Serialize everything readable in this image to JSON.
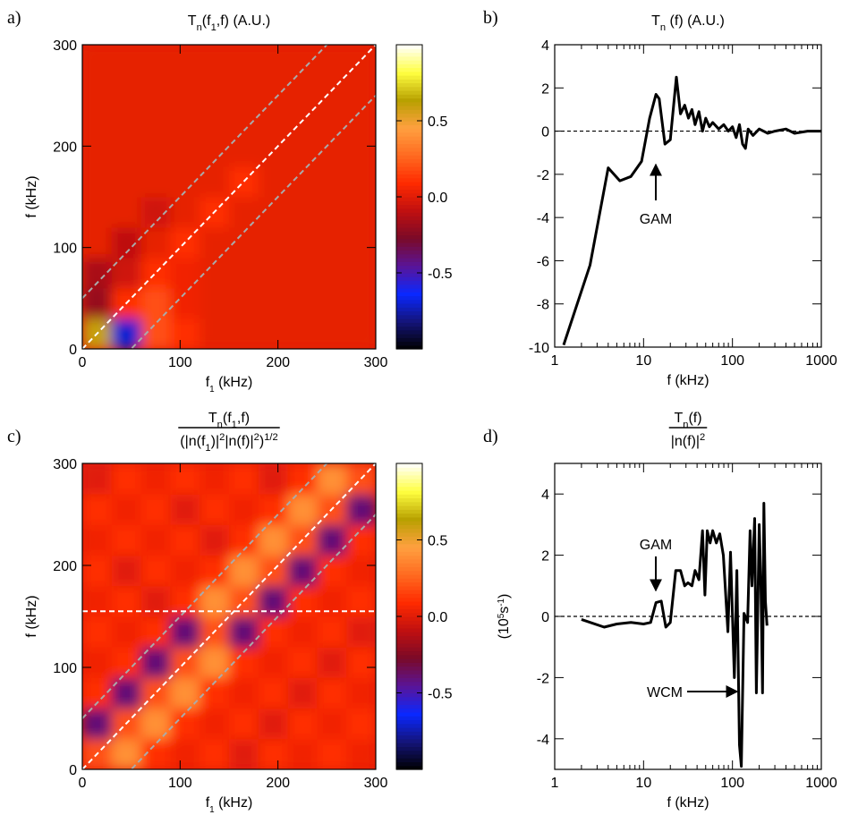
{
  "chart_data": [
    {
      "type": "heatmap",
      "panel_label": "a)",
      "title": [
        {
          "text": "T"
        },
        {
          "text": "n",
          "shift": "sub"
        },
        {
          "text": "(f"
        },
        {
          "text": "1",
          "shift": "sub"
        },
        {
          "text": ",f) (A.U.)"
        }
      ],
      "xlabel": [
        {
          "text": "f"
        },
        {
          "text": "1",
          "shift": "sub"
        },
        {
          "text": " (kHz)"
        }
      ],
      "ylabel": [
        {
          "text": "f (kHz)"
        }
      ],
      "xlim": [
        0,
        300
      ],
      "ylim": [
        0,
        300
      ],
      "xticks": [
        0,
        100,
        200,
        300
      ],
      "yticks": [
        0,
        100,
        200,
        300
      ],
      "zlim": [
        -1,
        1
      ],
      "zticks": [
        -0.5,
        {
          "value": 0,
          "label": "0.0"
        },
        0.5
      ],
      "colorscale": [
        "#000000",
        "#14147a",
        "#0a28ff",
        "#5a1498",
        "#7a0a28",
        "#c01010",
        "#ff2a00",
        "#ff6a20",
        "#ffa040",
        "#b8a000",
        "#ffff40",
        "#ffffff"
      ],
      "diagonals": [
        {
          "offset": 50,
          "color": "#aaaaaa"
        },
        {
          "offset": 0,
          "color": "#ffffff"
        },
        {
          "offset": -50,
          "color": "#aaaaaa"
        }
      ],
      "z": [
        [
          0.6,
          -0.7,
          0.2,
          0.1,
          0.02,
          0.02,
          0.02,
          0.02,
          0.02,
          0.02
        ],
        [
          -0.2,
          0.1,
          0.2,
          0.05,
          0.02,
          0.02,
          0.02,
          0.02,
          0.02,
          0.02
        ],
        [
          -0.15,
          -0.05,
          0.1,
          0.05,
          0.02,
          0.02,
          0.02,
          0.02,
          0.02,
          0.02
        ],
        [
          0.02,
          -0.1,
          0.02,
          0.1,
          0.02,
          0.02,
          0.02,
          0.02,
          0.02,
          0.02
        ],
        [
          0.02,
          0.02,
          -0.05,
          0.02,
          0.1,
          0.02,
          0.02,
          0.02,
          0.02,
          0.02
        ],
        [
          0.02,
          0.02,
          0.02,
          0.02,
          0.02,
          0.1,
          0.02,
          0.02,
          0.02,
          0.02
        ],
        [
          0.02,
          0.02,
          0.02,
          0.02,
          0.02,
          0.02,
          0.02,
          0.02,
          0.02,
          0.02
        ],
        [
          0.02,
          0.02,
          0.02,
          0.02,
          0.02,
          0.02,
          0.02,
          0.02,
          0.02,
          0.02
        ],
        [
          0.02,
          0.02,
          0.02,
          0.02,
          0.02,
          0.02,
          0.02,
          0.02,
          0.02,
          0.02
        ],
        [
          0.02,
          0.02,
          0.02,
          0.02,
          0.02,
          0.02,
          0.02,
          0.02,
          0.02,
          0.02
        ]
      ]
    },
    {
      "type": "line",
      "panel_label": "b)",
      "title": [
        {
          "text": "T"
        },
        {
          "text": "n",
          "shift": "sub"
        },
        {
          "text": " (f) (A.U.)"
        }
      ],
      "xlabel": [
        {
          "text": "f (kHz)"
        }
      ],
      "xlog": true,
      "xlim": [
        1,
        1000
      ],
      "xticks": [
        1,
        10,
        100,
        1000
      ],
      "ylim": [
        -10,
        4
      ],
      "yticks": [
        -10,
        -8,
        -6,
        -4,
        -2,
        0,
        2,
        4
      ],
      "zero_line": true,
      "color": "#000000",
      "x": [
        1.26,
        2.5,
        4,
        5.4,
        7.2,
        9.5,
        11.7,
        13.8,
        15,
        17.4,
        20,
        23.4,
        26,
        29,
        32,
        35,
        38,
        42,
        46,
        50,
        55,
        60,
        70,
        80,
        90,
        100,
        110,
        120,
        130,
        140,
        150,
        170,
        200,
        250,
        300,
        400,
        500,
        700,
        1000
      ],
      "values": [
        -9.9,
        -6.2,
        -1.7,
        -2.3,
        -2.1,
        -1.4,
        0.6,
        1.7,
        1.5,
        -0.6,
        -0.4,
        2.5,
        0.8,
        1.2,
        0.6,
        1.0,
        0.3,
        0.9,
        0.0,
        0.6,
        0.2,
        0.4,
        0.1,
        0.3,
        0.0,
        0.2,
        -0.3,
        0.3,
        -0.6,
        -0.8,
        0.1,
        -0.2,
        0.1,
        -0.1,
        0.0,
        0.1,
        -0.1,
        0.0,
        0.0
      ],
      "annotations": [
        "GAM"
      ]
    },
    {
      "type": "heatmap",
      "panel_label": "c)",
      "title_numerator": [
        {
          "text": "T"
        },
        {
          "text": "n",
          "shift": "sub"
        },
        {
          "text": "(f"
        },
        {
          "text": "1",
          "shift": "sub"
        },
        {
          "text": ",f)"
        }
      ],
      "title_denominator": [
        {
          "text": "(|n(f"
        },
        {
          "text": "1",
          "shift": "sub"
        },
        {
          "text": ")|"
        },
        {
          "text": "2",
          "shift": "sup"
        },
        {
          "text": "|n(f)|"
        },
        {
          "text": "2",
          "shift": "sup"
        },
        {
          "text": ")"
        },
        {
          "text": "1/2",
          "shift": "sup"
        }
      ],
      "xlabel": [
        {
          "text": "f"
        },
        {
          "text": "1",
          "shift": "sub"
        },
        {
          "text": " (kHz)"
        }
      ],
      "ylabel": [
        {
          "text": "f (kHz)"
        }
      ],
      "xlim": [
        0,
        300
      ],
      "ylim": [
        0,
        300
      ],
      "xticks": [
        0,
        100,
        200,
        300
      ],
      "yticks": [
        0,
        100,
        200,
        300
      ],
      "zlim": [
        -1,
        1
      ],
      "zticks": [
        -0.5,
        {
          "value": 0,
          "label": "0.0"
        },
        0.5
      ],
      "colorscale": [
        "#000000",
        "#14147a",
        "#0a28ff",
        "#5a1498",
        "#7a0a28",
        "#c01010",
        "#ff2a00",
        "#ff6a20",
        "#ffa040",
        "#b8a000",
        "#ffff40",
        "#ffffff"
      ],
      "diagonals": [
        {
          "offset": 50,
          "color": "#aaaaaa"
        },
        {
          "offset": 0,
          "color": "#ffffff"
        },
        {
          "offset": -50,
          "color": "#aaaaaa"
        }
      ],
      "hline": 155,
      "z": [
        [
          0.2,
          0.4,
          0.1,
          0.05,
          0.1,
          0.0,
          0.1,
          0.05,
          0.1,
          0.05
        ],
        [
          -0.4,
          0.2,
          0.4,
          0.1,
          0.05,
          0.1,
          0.0,
          0.1,
          0.05,
          0.1
        ],
        [
          0.1,
          -0.4,
          0.2,
          0.4,
          0.1,
          0.05,
          0.1,
          0.0,
          0.1,
          0.05
        ],
        [
          0.05,
          0.1,
          -0.4,
          0.2,
          0.4,
          0.1,
          0.05,
          0.1,
          0.0,
          0.1
        ],
        [
          0.1,
          0.05,
          0.1,
          -0.4,
          0.2,
          -0.4,
          0.1,
          0.05,
          0.1,
          0.0
        ],
        [
          0.05,
          0.1,
          0.0,
          0.1,
          0.4,
          0.2,
          -0.4,
          0.1,
          0.05,
          0.1
        ],
        [
          0.1,
          0.0,
          0.1,
          0.05,
          0.1,
          0.4,
          0.2,
          -0.4,
          0.1,
          0.05
        ],
        [
          0.05,
          0.1,
          0.05,
          0.1,
          0.0,
          0.1,
          0.4,
          0.2,
          -0.4,
          0.1
        ],
        [
          0.1,
          0.05,
          0.1,
          0.0,
          0.1,
          0.05,
          0.1,
          0.4,
          0.2,
          -0.4
        ],
        [
          0.0,
          0.1,
          0.05,
          0.1,
          0.05,
          0.1,
          0.0,
          0.1,
          0.4,
          0.2
        ]
      ]
    },
    {
      "type": "line",
      "panel_label": "d)",
      "title_numerator": [
        {
          "text": "T"
        },
        {
          "text": "n",
          "shift": "sub"
        },
        {
          "text": "(f)"
        }
      ],
      "title_denominator": [
        {
          "text": "|n(f)|"
        },
        {
          "text": "2",
          "shift": "sup"
        }
      ],
      "xlabel": [
        {
          "text": "f (kHz)"
        }
      ],
      "ylabel": [
        {
          "text": "(10"
        },
        {
          "text": "5",
          "shift": "sup"
        },
        {
          "text": "s"
        },
        {
          "text": "-1",
          "shift": "sup"
        },
        {
          "text": ")"
        }
      ],
      "xlog": true,
      "xlim": [
        1,
        1000
      ],
      "xticks": [
        1,
        10,
        100,
        1000
      ],
      "ylim": [
        -5,
        5
      ],
      "yticks": [
        -4,
        -2,
        0,
        2,
        4
      ],
      "zero_line": true,
      "color": "#000000",
      "x": [
        2,
        3.6,
        5,
        7.2,
        10,
        12,
        13.8,
        15.8,
        17.8,
        20,
        23,
        26,
        29,
        31.6,
        35,
        38,
        42,
        46,
        49,
        52,
        56,
        60,
        66,
        72,
        79,
        89,
        95,
        105,
        112,
        120,
        126,
        135,
        148,
        158,
        166,
        178,
        186,
        200,
        209,
        218,
        226,
        235,
        245
      ],
      "values": [
        -0.1,
        -0.35,
        -0.25,
        -0.2,
        -0.25,
        -0.2,
        0.45,
        0.5,
        -0.35,
        -0.2,
        1.5,
        1.5,
        1.0,
        1.1,
        1.0,
        1.5,
        1.2,
        2.8,
        0.7,
        2.8,
        2.4,
        2.8,
        2.4,
        2.7,
        2.0,
        -0.5,
        2.1,
        -2.0,
        1.5,
        -4.2,
        -4.9,
        0.1,
        -0.2,
        2.8,
        1.0,
        3.2,
        -2.5,
        3.0,
        1.0,
        -2.5,
        3.7,
        0.5,
        -0.3
      ],
      "annotations": [
        "GAM",
        "WCM"
      ]
    }
  ]
}
